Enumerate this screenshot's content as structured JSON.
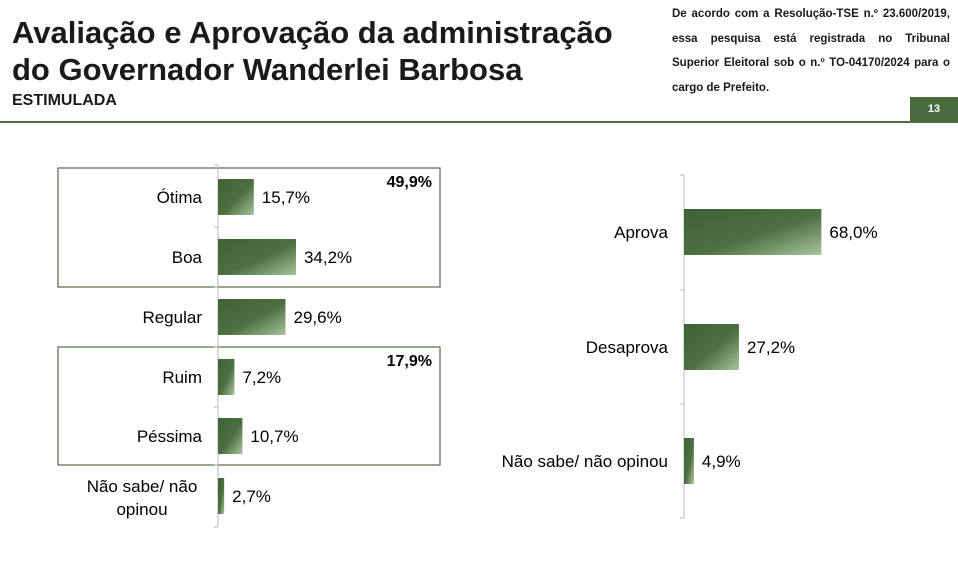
{
  "header": {
    "title": "Avaliação e Aprovação da administração do Governador Wanderlei Barbosa",
    "subtitle": "ESTIMULADA",
    "legal_note": "De acordo com a Resolução-TSE n.º 23.600/2019, essa pesquisa está registrada no Tribunal Superior Eleitoral sob o n.º TO-04170/2024 para o cargo de Prefeito.",
    "page_number": "13"
  },
  "colors": {
    "bar_dark": "#3f6236",
    "bar_light": "#a9c49b",
    "accent": "#4a6b3c"
  },
  "chart_data": [
    {
      "type": "bar",
      "orientation": "horizontal",
      "categories": [
        "Ótima",
        "Boa",
        "Regular",
        "Ruim",
        "Péssima",
        "Não sabe/ não opinou"
      ],
      "values": [
        15.7,
        34.2,
        29.6,
        7.2,
        10.7,
        2.7
      ],
      "value_labels": [
        "15,7%",
        "34,2%",
        "29,6%",
        "7,2%",
        "10,7%",
        "2,7%"
      ],
      "groups": [
        {
          "members": [
            "Ótima",
            "Boa"
          ],
          "total": 49.9,
          "total_label": "49,9%"
        },
        {
          "members": [
            "Ruim",
            "Péssima"
          ],
          "total": 17.9,
          "total_label": "17,9%"
        }
      ],
      "xlim": [
        0,
        100
      ]
    },
    {
      "type": "bar",
      "orientation": "horizontal",
      "categories": [
        "Aprova",
        "Desaprova",
        "Não sabe/ não opinou"
      ],
      "values": [
        68.0,
        27.2,
        4.9
      ],
      "value_labels": [
        "68,0%",
        "27,2%",
        "4,9%"
      ],
      "xlim": [
        0,
        100
      ]
    }
  ]
}
